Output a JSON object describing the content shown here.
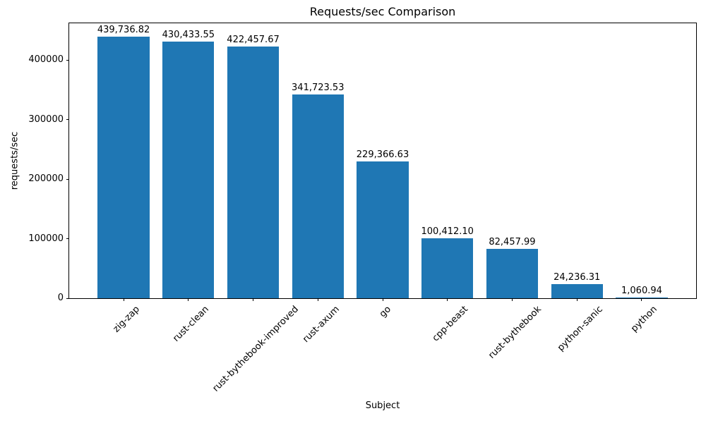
{
  "figure": {
    "background": "#ffffff",
    "text_color": "#000000",
    "frame_color": "#000000"
  },
  "chart_data": {
    "type": "bar",
    "title": "Requests/sec Comparison",
    "xlabel": "Subject",
    "ylabel": "requests/sec",
    "categories": [
      "zig-zap",
      "rust-clean",
      "rust-bythebook-improved",
      "rust-axum",
      "go",
      "cpp-beast",
      "rust-bythebook",
      "python-sanic",
      "python"
    ],
    "values": [
      439736.82,
      430433.55,
      422457.67,
      341723.53,
      229366.63,
      100412.1,
      82457.99,
      24236.31,
      1060.94
    ],
    "value_labels": [
      "439,736.82",
      "430,433.55",
      "422,457.67",
      "341,723.53",
      "229,366.63",
      "100,412.10",
      "82,457.99",
      "24,236.31",
      "1,060.94"
    ],
    "bar_color": "#1f77b4",
    "bar_width_fraction": 0.8,
    "x_margin_units": 0.84,
    "ylim": [
      0,
      461723.66
    ],
    "yticks": [
      0,
      100000,
      200000,
      300000,
      400000
    ],
    "ytick_labels": [
      "0",
      "100000",
      "200000",
      "300000",
      "400000"
    ],
    "x_tick_rotation_deg": 45,
    "grid": false,
    "legend": null
  }
}
